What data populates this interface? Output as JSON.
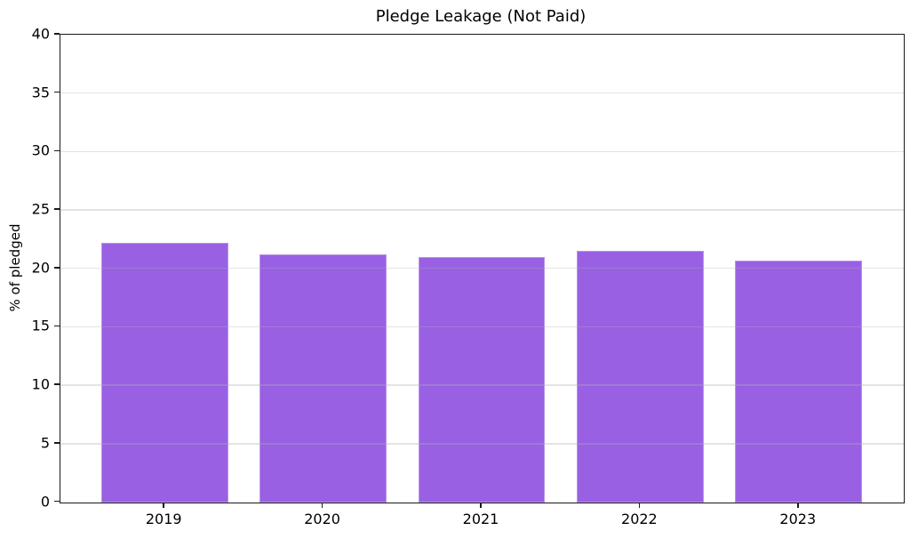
{
  "figure": {
    "title": "Pledge Leakage (Not Paid)",
    "ylabel": "% of pledged"
  },
  "chart_data": {
    "type": "bar",
    "title": "Pledge Leakage (Not Paid)",
    "xlabel": "",
    "ylabel": "% of pledged",
    "categories": [
      "2019",
      "2020",
      "2021",
      "2022",
      "2023"
    ],
    "values": [
      22.2,
      21.2,
      21.0,
      21.5,
      20.7
    ],
    "ylim": [
      0,
      40
    ],
    "yticks": [
      0,
      5,
      10,
      15,
      20,
      25,
      30,
      35,
      40
    ],
    "grid": "y-only, light gray, drawn over bars",
    "legend": "none",
    "colors": {
      "bar_fill": "#9960e3",
      "bar_edge": "#bb93ea",
      "grid_line": "#b0b0b0",
      "grid_alpha": "0.35",
      "spine": "#1a1a1a",
      "text": "#000000",
      "background": "#ffffff"
    }
  }
}
